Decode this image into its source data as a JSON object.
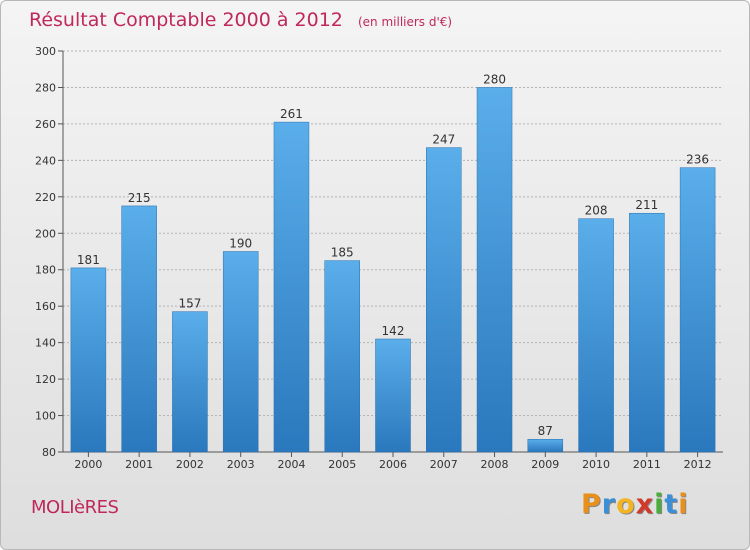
{
  "chart_data": {
    "type": "bar",
    "title": "Résultat Comptable 2000 à 2012",
    "unit": "(en milliers d'€)",
    "xlabel": "",
    "ylabel": "",
    "categories": [
      "2000",
      "2001",
      "2002",
      "2003",
      "2004",
      "2005",
      "2006",
      "2007",
      "2008",
      "2009",
      "2010",
      "2011",
      "2012"
    ],
    "values": [
      181,
      215,
      157,
      190,
      261,
      185,
      142,
      247,
      280,
      87,
      208,
      211,
      236
    ],
    "ylim": [
      80,
      300
    ],
    "yticks": [
      80,
      100,
      120,
      140,
      160,
      180,
      200,
      220,
      240,
      260,
      280,
      300
    ],
    "grid": true,
    "legend": "none"
  },
  "footer": {
    "commune": "MOLIèRES",
    "brand_letters": [
      "P",
      "r",
      "o",
      "x",
      "i",
      "t",
      "i"
    ]
  },
  "colors": {
    "title": "#c0285a",
    "bar_top": "#5aaeea",
    "bar_bottom": "#2a78bd",
    "brand": [
      "#e8901a",
      "#3a8fd6",
      "#f2b51f",
      "#d13a2a",
      "#49ad3a",
      "#3a8fd6",
      "#e8901a"
    ]
  }
}
